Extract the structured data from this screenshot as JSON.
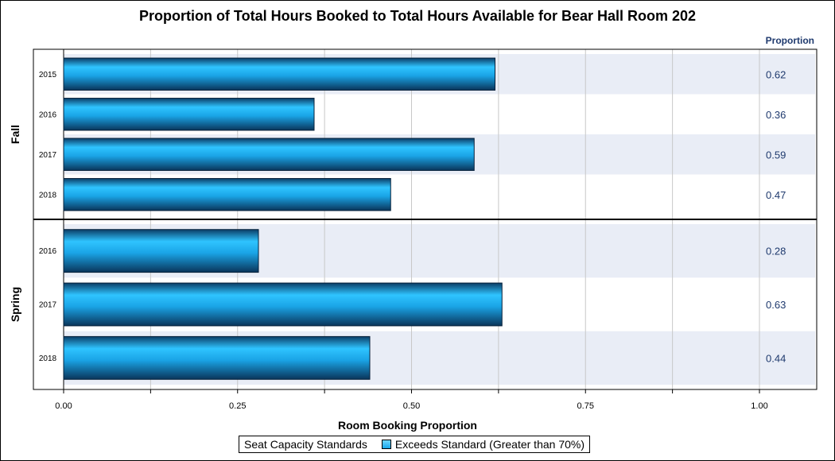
{
  "chart_data": {
    "type": "bar",
    "orientation": "horizontal",
    "title": "Proportion of Total Hours Booked to Total Hours Available for Bear Hall Room 202",
    "xlabel": "Room Booking Proportion",
    "value_column_label": "Proportion",
    "xlim": [
      0,
      1.0
    ],
    "x_ticks": [
      "0.00",
      "0.25",
      "0.50",
      "0.75",
      "1.00"
    ],
    "groups": [
      {
        "name": "Fall",
        "categories": [
          "2015",
          "2016",
          "2017",
          "2018"
        ],
        "values": [
          0.62,
          0.36,
          0.59,
          0.47
        ],
        "labels": [
          "0.62",
          "0.36",
          "0.59",
          "0.47"
        ]
      },
      {
        "name": "Spring",
        "categories": [
          "2016",
          "2017",
          "2018"
        ],
        "values": [
          0.28,
          0.63,
          0.44
        ],
        "labels": [
          "0.28",
          "0.63",
          "0.44"
        ]
      }
    ],
    "legend": {
      "title": "Seat Capacity Standards",
      "entries": [
        "Exceeds Standard (Greater than 70%)"
      ],
      "placement": "bottom"
    },
    "grid": true
  },
  "colors": {
    "bar_light": "#2fc4ff",
    "bar_dark": "#0b3d66",
    "band": "#e9edf6",
    "grid": "#c8c8c8",
    "value_text": "#1f3a6e"
  }
}
